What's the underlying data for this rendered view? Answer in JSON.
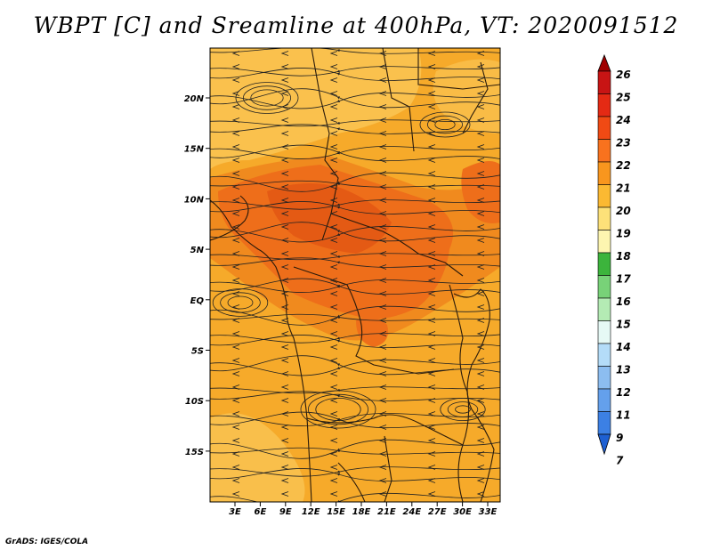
{
  "title": "WBPT [C] and Sreamline at 400hPa, VT: 2020091512",
  "credit": "GrADS: IGES/COLA",
  "map": {
    "lat_ticks": [
      "20N",
      "15N",
      "10N",
      "5N",
      "EQ",
      "5S",
      "10S",
      "15S"
    ],
    "lon_ticks": [
      "3E",
      "6E",
      "9E",
      "12E",
      "15E",
      "18E",
      "21E",
      "24E",
      "27E",
      "30E",
      "33E"
    ],
    "field_colors": {
      "background": "#f6aa2a",
      "light": "#fbc85a",
      "mid": "#f08a1e",
      "hot": "#ee6e1a",
      "hottest": "#e45a14"
    }
  },
  "colorbar": {
    "levels": [
      "26",
      "25",
      "24",
      "23",
      "22",
      "21",
      "20",
      "19",
      "18",
      "17",
      "16",
      "15",
      "14",
      "13",
      "12",
      "11",
      "9",
      "7"
    ],
    "colors": [
      "#a00000",
      "#c81414",
      "#e42a14",
      "#f04a14",
      "#f8721e",
      "#f8961e",
      "#fbb932",
      "#fde179",
      "#fdf5b0",
      "#3cb43c",
      "#78d278",
      "#b4ebb4",
      "#e6f9f5",
      "#b4dcf8",
      "#8cbdf0",
      "#64a0ec",
      "#3c80e4",
      "#1e60d2"
    ]
  }
}
